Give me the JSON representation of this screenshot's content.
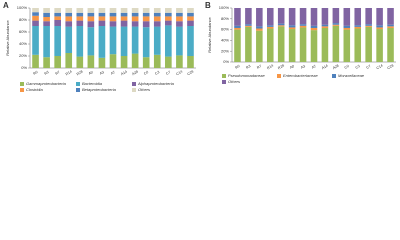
{
  "chart_data": [
    {
      "type": "stacked_bar",
      "label": "A",
      "y_label": "Relative Abundance",
      "categories": [
        "R0",
        "R3",
        "R7",
        "R14",
        "R28",
        "A0",
        "A3",
        "A7",
        "A14",
        "A28",
        "C0",
        "C3",
        "C7",
        "C14",
        "C28"
      ],
      "ylim": [
        0,
        100
      ],
      "yticks": [
        {
          "value": 0,
          "label": "0%"
        },
        {
          "value": 20,
          "label": "20%"
        },
        {
          "value": 40,
          "label": "40%"
        },
        {
          "value": 60,
          "label": "60%"
        },
        {
          "value": 80,
          "label": "80%"
        },
        {
          "value": 100,
          "label": "100%"
        }
      ],
      "series": [
        {
          "name": "Gammaproteobacteria",
          "color": "#9bbb59",
          "values": [
            22,
            18,
            20,
            25,
            19,
            21,
            17,
            23,
            20,
            24,
            18,
            22,
            19,
            21,
            20
          ]
        },
        {
          "name": "Bacteroidia",
          "color": "#4bacc6",
          "values": [
            48,
            52,
            50,
            44,
            51,
            47,
            53,
            46,
            49,
            45,
            50,
            47,
            52,
            48,
            50
          ]
        },
        {
          "name": "Alphaproteobacteria",
          "color": "#8064a2",
          "values": [
            9,
            8,
            10,
            9,
            9,
            10,
            9,
            9,
            10,
            9,
            10,
            9,
            8,
            9,
            9
          ]
        },
        {
          "name": "Clostridia",
          "color": "#f79646",
          "values": [
            8,
            7,
            6,
            8,
            7,
            8,
            7,
            8,
            7,
            8,
            8,
            8,
            7,
            8,
            7
          ]
        },
        {
          "name": "Betaproteobacteria",
          "color": "#4f81bd",
          "values": [
            6,
            7,
            6,
            6,
            6,
            6,
            6,
            6,
            6,
            6,
            6,
            6,
            6,
            6,
            6
          ]
        },
        {
          "name": "Others",
          "color": "#ddd9c3",
          "values": [
            7,
            8,
            8,
            8,
            8,
            8,
            8,
            8,
            8,
            8,
            8,
            8,
            8,
            8,
            8
          ]
        }
      ]
    },
    {
      "type": "stacked_bar",
      "label": "B",
      "y_label": "Relative Abundance",
      "categories": [
        "R0",
        "R3",
        "R7",
        "R14",
        "R28",
        "A0",
        "A3",
        "A7",
        "A14",
        "A28",
        "C0",
        "C3",
        "C7",
        "C14",
        "C28"
      ],
      "ylim": [
        0,
        100
      ],
      "yticks": [
        {
          "value": 0,
          "label": "0%"
        },
        {
          "value": 20,
          "label": "20%"
        },
        {
          "value": 40,
          "label": "40%"
        },
        {
          "value": 60,
          "label": "60%"
        },
        {
          "value": 80,
          "label": "80%"
        },
        {
          "value": 100,
          "label": "100%"
        }
      ],
      "series": [
        {
          "name": "Pseudomonadaceae",
          "color": "#9bbb59",
          "values": [
            60,
            65,
            58,
            62,
            66,
            61,
            64,
            59,
            63,
            67,
            60,
            62,
            65,
            61,
            63
          ]
        },
        {
          "name": "Enterobacteriaceae",
          "color": "#f79646",
          "values": [
            3,
            2,
            4,
            3,
            2,
            3,
            3,
            4,
            3,
            2,
            3,
            3,
            2,
            3,
            3
          ]
        },
        {
          "name": "Moraxellaceae",
          "color": "#4f81bd",
          "values": [
            4,
            3,
            4,
            3,
            3,
            4,
            3,
            4,
            3,
            3,
            4,
            3,
            3,
            4,
            3
          ]
        },
        {
          "name": "Others",
          "color": "#8064a2",
          "values": [
            33,
            30,
            34,
            32,
            29,
            32,
            30,
            33,
            31,
            28,
            33,
            32,
            30,
            32,
            31
          ]
        }
      ]
    }
  ]
}
